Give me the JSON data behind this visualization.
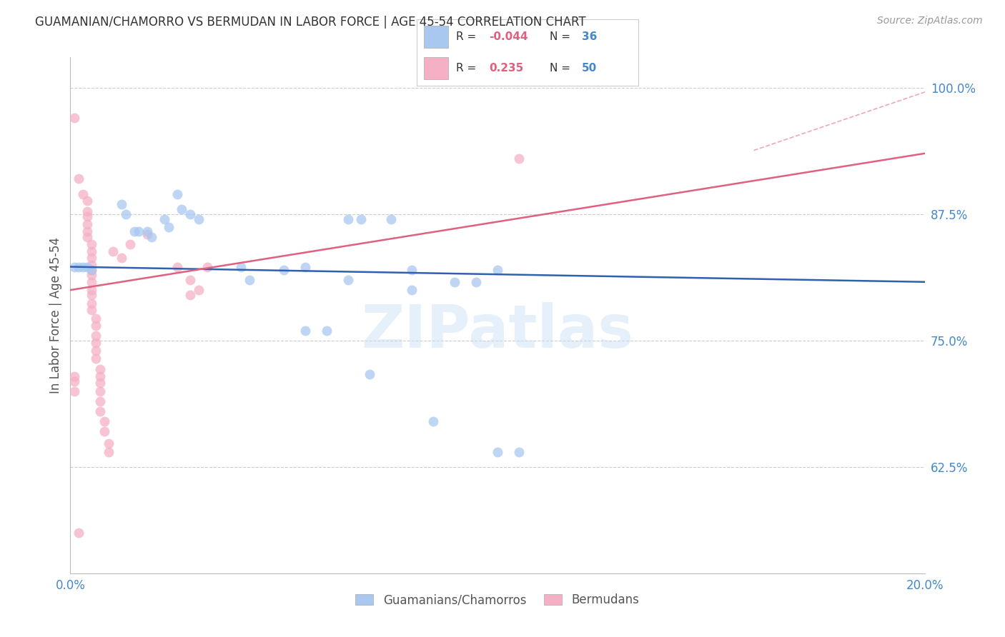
{
  "title": "GUAMANIAN/CHAMORRO VS BERMUDAN IN LABOR FORCE | AGE 45-54 CORRELATION CHART",
  "source": "Source: ZipAtlas.com",
  "ylabel": "In Labor Force | Age 45-54",
  "xlim": [
    0.0,
    0.2
  ],
  "ylim": [
    0.52,
    1.03
  ],
  "yticks": [
    0.625,
    0.75,
    0.875,
    1.0
  ],
  "ytick_labels": [
    "62.5%",
    "75.0%",
    "87.5%",
    "100.0%"
  ],
  "blue_R": "-0.044",
  "blue_N": "36",
  "pink_R": "0.235",
  "pink_N": "50",
  "blue_scatter": [
    [
      0.001,
      0.823
    ],
    [
      0.002,
      0.823
    ],
    [
      0.003,
      0.823
    ],
    [
      0.004,
      0.823
    ],
    [
      0.005,
      0.82
    ],
    [
      0.012,
      0.885
    ],
    [
      0.013,
      0.875
    ],
    [
      0.015,
      0.858
    ],
    [
      0.016,
      0.858
    ],
    [
      0.018,
      0.858
    ],
    [
      0.019,
      0.852
    ],
    [
      0.022,
      0.87
    ],
    [
      0.023,
      0.862
    ],
    [
      0.025,
      0.895
    ],
    [
      0.026,
      0.88
    ],
    [
      0.028,
      0.875
    ],
    [
      0.03,
      0.87
    ],
    [
      0.04,
      0.823
    ],
    [
      0.042,
      0.81
    ],
    [
      0.055,
      0.823
    ],
    [
      0.065,
      0.87
    ],
    [
      0.068,
      0.87
    ],
    [
      0.075,
      0.87
    ],
    [
      0.08,
      0.82
    ],
    [
      0.09,
      0.808
    ],
    [
      0.095,
      0.808
    ],
    [
      0.1,
      0.82
    ],
    [
      0.08,
      0.8
    ],
    [
      0.05,
      0.82
    ],
    [
      0.055,
      0.76
    ],
    [
      0.06,
      0.76
    ],
    [
      0.065,
      0.81
    ],
    [
      0.07,
      0.717
    ],
    [
      0.085,
      0.67
    ],
    [
      0.1,
      0.64
    ],
    [
      0.105,
      0.64
    ]
  ],
  "pink_scatter": [
    [
      0.001,
      0.97
    ],
    [
      0.002,
      0.91
    ],
    [
      0.003,
      0.895
    ],
    [
      0.004,
      0.888
    ],
    [
      0.004,
      0.878
    ],
    [
      0.004,
      0.873
    ],
    [
      0.004,
      0.865
    ],
    [
      0.004,
      0.858
    ],
    [
      0.004,
      0.852
    ],
    [
      0.005,
      0.845
    ],
    [
      0.005,
      0.838
    ],
    [
      0.005,
      0.832
    ],
    [
      0.005,
      0.825
    ],
    [
      0.005,
      0.82
    ],
    [
      0.005,
      0.815
    ],
    [
      0.005,
      0.808
    ],
    [
      0.005,
      0.8
    ],
    [
      0.005,
      0.795
    ],
    [
      0.005,
      0.787
    ],
    [
      0.005,
      0.78
    ],
    [
      0.006,
      0.772
    ],
    [
      0.006,
      0.765
    ],
    [
      0.006,
      0.755
    ],
    [
      0.006,
      0.748
    ],
    [
      0.006,
      0.74
    ],
    [
      0.006,
      0.732
    ],
    [
      0.007,
      0.722
    ],
    [
      0.007,
      0.715
    ],
    [
      0.007,
      0.708
    ],
    [
      0.007,
      0.7
    ],
    [
      0.007,
      0.69
    ],
    [
      0.007,
      0.68
    ],
    [
      0.008,
      0.67
    ],
    [
      0.008,
      0.66
    ],
    [
      0.009,
      0.648
    ],
    [
      0.009,
      0.64
    ],
    [
      0.01,
      0.838
    ],
    [
      0.012,
      0.832
    ],
    [
      0.014,
      0.845
    ],
    [
      0.018,
      0.855
    ],
    [
      0.025,
      0.823
    ],
    [
      0.028,
      0.81
    ],
    [
      0.028,
      0.795
    ],
    [
      0.03,
      0.8
    ],
    [
      0.032,
      0.823
    ],
    [
      0.002,
      0.56
    ],
    [
      0.105,
      0.93
    ],
    [
      0.001,
      0.715
    ],
    [
      0.001,
      0.71
    ],
    [
      0.001,
      0.7
    ]
  ],
  "blue_line": [
    0.0,
    0.2,
    0.823,
    0.808
  ],
  "pink_line": [
    0.0,
    0.2,
    0.8,
    0.935
  ],
  "pink_dash": [
    0.16,
    0.21,
    0.938,
    1.01
  ],
  "bg_color": "#ffffff",
  "blue_color": "#a8c8f0",
  "pink_color": "#f5b0c5",
  "blue_line_color": "#3060b0",
  "pink_line_color": "#e06080",
  "grid_color": "#cccccc",
  "title_color": "#333333",
  "axis_label_color": "#555555",
  "axis_tick_color": "#4488cc",
  "source_color": "#999999",
  "legend_R_color": "#e06080",
  "legend_N_color": "#4488cc",
  "legend_text_color": "#333333"
}
